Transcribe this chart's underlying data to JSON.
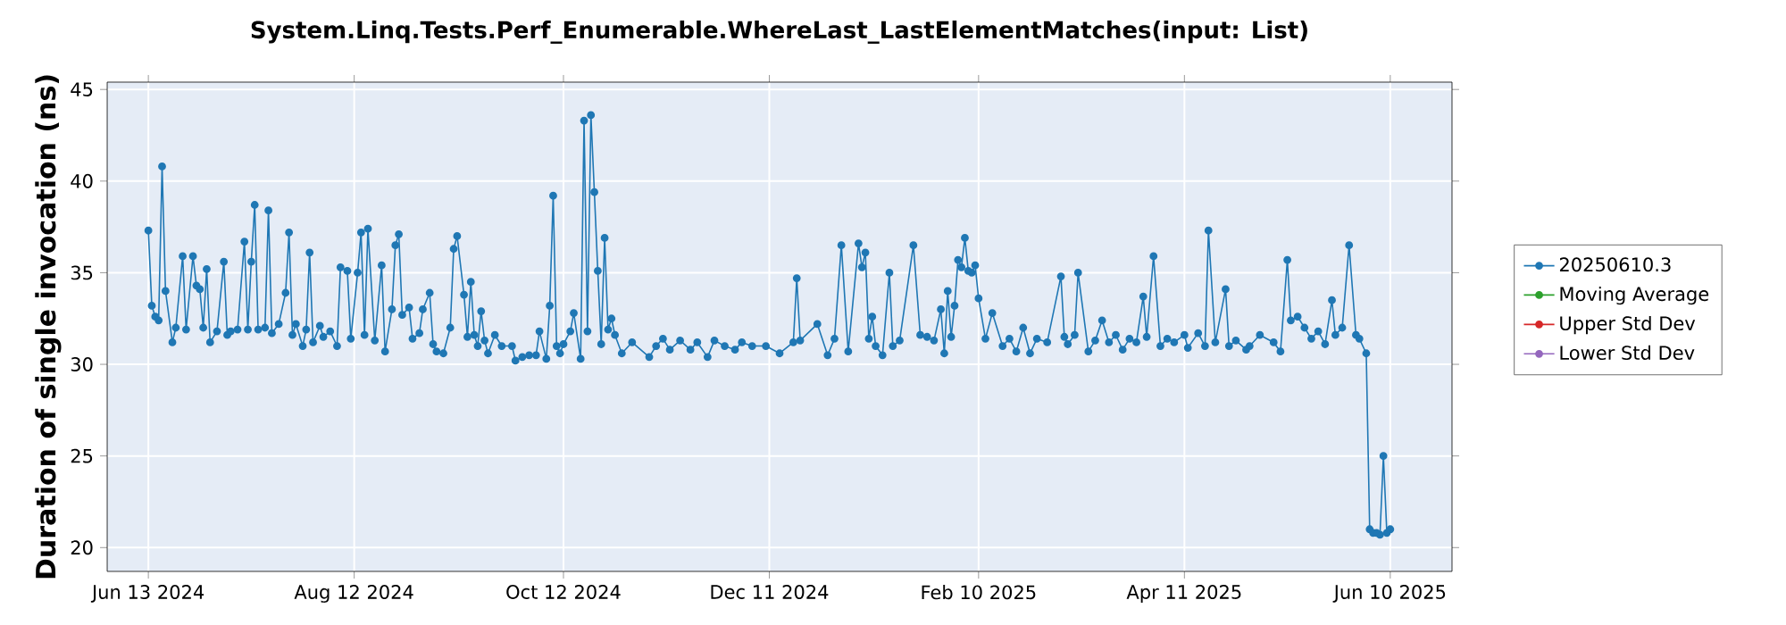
{
  "chart_data": {
    "type": "line",
    "title": "System.Linq.Tests.Perf_Enumerable.WhereLast_LastElementMatches(input: List)",
    "ylabel": "Duration of single invocation (ns)",
    "xlim": [
      "2024-06-01",
      "2025-06-28"
    ],
    "ylim": [
      18.7,
      45.4
    ],
    "xticks": [
      {
        "value": "2024-06-13",
        "label": "Jun 13 2024"
      },
      {
        "value": "2024-08-12",
        "label": "Aug 12 2024"
      },
      {
        "value": "2024-10-12",
        "label": "Oct 12 2024"
      },
      {
        "value": "2024-12-11",
        "label": "Dec 11 2024"
      },
      {
        "value": "2025-02-10",
        "label": "Feb 10 2025"
      },
      {
        "value": "2025-04-11",
        "label": "Apr 11 2025"
      },
      {
        "value": "2025-06-10",
        "label": "Jun 10 2025"
      }
    ],
    "yticks": [
      20,
      25,
      30,
      35,
      40,
      45
    ],
    "grid": true,
    "legend": "right",
    "marker": "circle",
    "series": [
      {
        "name": "20250610.3",
        "color": "#1f77b4",
        "x": [
          "2024-06-13",
          "2024-06-14",
          "2024-06-15",
          "2024-06-16",
          "2024-06-17",
          "2024-06-18",
          "2024-06-20",
          "2024-06-21",
          "2024-06-23",
          "2024-06-24",
          "2024-06-26",
          "2024-06-27",
          "2024-06-28",
          "2024-06-29",
          "2024-06-30",
          "2024-07-01",
          "2024-07-03",
          "2024-07-05",
          "2024-07-06",
          "2024-07-07",
          "2024-07-09",
          "2024-07-11",
          "2024-07-12",
          "2024-07-13",
          "2024-07-14",
          "2024-07-15",
          "2024-07-17",
          "2024-07-18",
          "2024-07-19",
          "2024-07-21",
          "2024-07-23",
          "2024-07-24",
          "2024-07-25",
          "2024-07-26",
          "2024-07-28",
          "2024-07-29",
          "2024-07-30",
          "2024-07-31",
          "2024-08-02",
          "2024-08-03",
          "2024-08-05",
          "2024-08-07",
          "2024-08-08",
          "2024-08-10",
          "2024-08-11",
          "2024-08-13",
          "2024-08-14",
          "2024-08-15",
          "2024-08-16",
          "2024-08-18",
          "2024-08-20",
          "2024-08-21",
          "2024-08-23",
          "2024-08-24",
          "2024-08-25",
          "2024-08-26",
          "2024-08-28",
          "2024-08-29",
          "2024-08-31",
          "2024-09-01",
          "2024-09-03",
          "2024-09-04",
          "2024-09-05",
          "2024-09-07",
          "2024-09-09",
          "2024-09-10",
          "2024-09-11",
          "2024-09-13",
          "2024-09-14",
          "2024-09-15",
          "2024-09-16",
          "2024-09-17",
          "2024-09-18",
          "2024-09-19",
          "2024-09-20",
          "2024-09-22",
          "2024-09-24",
          "2024-09-27",
          "2024-09-28",
          "2024-09-30",
          "2024-10-02",
          "2024-10-04",
          "2024-10-05",
          "2024-10-07",
          "2024-10-08",
          "2024-10-09",
          "2024-10-10",
          "2024-10-11",
          "2024-10-12",
          "2024-10-14",
          "2024-10-15",
          "2024-10-17",
          "2024-10-18",
          "2024-10-19",
          "2024-10-20",
          "2024-10-21",
          "2024-10-22",
          "2024-10-23",
          "2024-10-24",
          "2024-10-25",
          "2024-10-26",
          "2024-10-27",
          "2024-10-29",
          "2024-11-01",
          "2024-11-06",
          "2024-11-08",
          "2024-11-10",
          "2024-11-12",
          "2024-11-15",
          "2024-11-18",
          "2024-11-20",
          "2024-11-23",
          "2024-11-25",
          "2024-11-28",
          "2024-12-01",
          "2024-12-03",
          "2024-12-06",
          "2024-12-10",
          "2024-12-14",
          "2024-12-18",
          "2024-12-19",
          "2024-12-20",
          "2024-12-25",
          "2024-12-28",
          "2024-12-30",
          "2025-01-01",
          "2025-01-03",
          "2025-01-06",
          "2025-01-07",
          "2025-01-08",
          "2025-01-09",
          "2025-01-10",
          "2025-01-11",
          "2025-01-13",
          "2025-01-15",
          "2025-01-16",
          "2025-01-18",
          "2025-01-22",
          "2025-01-24",
          "2025-01-26",
          "2025-01-28",
          "2025-01-30",
          "2025-01-31",
          "2025-02-01",
          "2025-02-02",
          "2025-02-03",
          "2025-02-04",
          "2025-02-05",
          "2025-02-06",
          "2025-02-07",
          "2025-02-08",
          "2025-02-09",
          "2025-02-10",
          "2025-02-12",
          "2025-02-14",
          "2025-02-17",
          "2025-02-19",
          "2025-02-21",
          "2025-02-23",
          "2025-02-25",
          "2025-02-27",
          "2025-03-02",
          "2025-03-06",
          "2025-03-07",
          "2025-03-08",
          "2025-03-10",
          "2025-03-11",
          "2025-03-14",
          "2025-03-16",
          "2025-03-18",
          "2025-03-20",
          "2025-03-22",
          "2025-03-24",
          "2025-03-26",
          "2025-03-28",
          "2025-03-30",
          "2025-03-31",
          "2025-04-02",
          "2025-04-04",
          "2025-04-06",
          "2025-04-08",
          "2025-04-11",
          "2025-04-12",
          "2025-04-15",
          "2025-04-17",
          "2025-04-18",
          "2025-04-20",
          "2025-04-23",
          "2025-04-24",
          "2025-04-26",
          "2025-04-29",
          "2025-04-30",
          "2025-05-03",
          "2025-05-07",
          "2025-05-09",
          "2025-05-11",
          "2025-05-12",
          "2025-05-14",
          "2025-05-16",
          "2025-05-18",
          "2025-05-20",
          "2025-05-22",
          "2025-05-24",
          "2025-05-25",
          "2025-05-27",
          "2025-05-29",
          "2025-05-31",
          "2025-06-01",
          "2025-06-03",
          "2025-06-04",
          "2025-06-05",
          "2025-06-06",
          "2025-06-07",
          "2025-06-08",
          "2025-06-09",
          "2025-06-10"
        ],
        "values": [
          37.3,
          33.2,
          32.6,
          32.4,
          40.8,
          34.0,
          31.2,
          32.0,
          35.9,
          31.9,
          35.9,
          34.3,
          34.1,
          32.0,
          35.2,
          31.2,
          31.8,
          35.6,
          31.6,
          31.8,
          31.9,
          36.7,
          31.9,
          35.6,
          38.7,
          31.9,
          32.0,
          38.4,
          31.7,
          32.2,
          33.9,
          37.2,
          31.6,
          32.2,
          31.0,
          31.9,
          36.1,
          31.2,
          32.1,
          31.5,
          31.8,
          31.0,
          35.3,
          35.1,
          31.4,
          35.0,
          37.2,
          31.6,
          37.4,
          31.3,
          35.4,
          30.7,
          33.0,
          36.5,
          37.1,
          32.7,
          33.1,
          31.4,
          31.7,
          33.0,
          33.9,
          31.1,
          30.7,
          30.6,
          32.0,
          36.3,
          37.0,
          33.8,
          31.5,
          34.5,
          31.6,
          31.0,
          32.9,
          31.3,
          30.6,
          31.6,
          31.0,
          31.0,
          30.2,
          30.4,
          30.5,
          30.5,
          31.8,
          30.3,
          33.2,
          39.2,
          31.0,
          30.6,
          31.1,
          31.8,
          32.8,
          30.3,
          43.3,
          31.8,
          43.6,
          39.4,
          35.1,
          31.1,
          36.9,
          31.9,
          32.5,
          31.6,
          30.6,
          31.2,
          30.4,
          31.0,
          31.4,
          30.8,
          31.3,
          30.8,
          31.2,
          30.4,
          31.3,
          31.0,
          30.8,
          31.2,
          31.0,
          31.0,
          30.6,
          31.2,
          34.7,
          31.3,
          32.2,
          30.5,
          31.4,
          36.5,
          30.7,
          36.6,
          35.3,
          36.1,
          31.4,
          32.6,
          31.0,
          30.5,
          35.0,
          31.0,
          31.3,
          36.5,
          31.6,
          31.5,
          31.3,
          33.0,
          30.6,
          34.0,
          31.5,
          33.2,
          35.7,
          35.3,
          36.9,
          35.1,
          35.0,
          35.4,
          33.6,
          31.4,
          32.8,
          31.0,
          31.4,
          30.7,
          32.0,
          30.6,
          31.4,
          31.2,
          34.8,
          31.5,
          31.1,
          31.6,
          35.0,
          30.7,
          31.3,
          32.4,
          31.2,
          31.6,
          30.8,
          31.4,
          31.2,
          33.7,
          31.5,
          35.9,
          31.0,
          31.4,
          31.2,
          31.6,
          30.9,
          31.7,
          31.0,
          37.3,
          31.2,
          34.1,
          31.0,
          31.3,
          30.8,
          31.0,
          31.6,
          31.2,
          30.7,
          35.7,
          32.4,
          32.6,
          32.0,
          31.4,
          31.8,
          31.1,
          33.5,
          31.6,
          32.0,
          36.5,
          31.6,
          31.4,
          30.6,
          21.0,
          20.8,
          20.8,
          20.7,
          25.0,
          20.8,
          21.0
        ]
      },
      {
        "name": "Moving Average",
        "color": "#2ca02c"
      },
      {
        "name": "Upper Std Dev",
        "color": "#d62728"
      },
      {
        "name": "Lower Std Dev",
        "color": "#9467bd"
      }
    ]
  }
}
